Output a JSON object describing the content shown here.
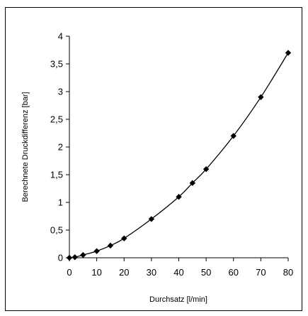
{
  "chart_data": {
    "type": "line",
    "title": "",
    "xlabel": "Durchsatz [l/min]",
    "ylabel": "Berechnete Druckdifferenz [bar]",
    "xlim": [
      0,
      80
    ],
    "ylim": [
      0,
      4
    ],
    "x_ticks": [
      "0",
      "10",
      "20",
      "30",
      "40",
      "50",
      "60",
      "70",
      "80"
    ],
    "y_ticks": [
      "0",
      "0,5",
      "1",
      "1,5",
      "2",
      "2,5",
      "3",
      "3,5",
      "4"
    ],
    "grid": false,
    "legend": "none",
    "marker": "diamond",
    "line_color": "#000000",
    "series": [
      {
        "x": [
          0,
          2,
          5,
          10,
          15,
          20,
          30,
          40,
          45,
          50,
          60,
          70,
          80
        ],
        "y": [
          0,
          0.01,
          0.05,
          0.12,
          0.22,
          0.35,
          0.7,
          1.1,
          1.35,
          1.6,
          2.2,
          2.9,
          3.7
        ]
      }
    ]
  }
}
